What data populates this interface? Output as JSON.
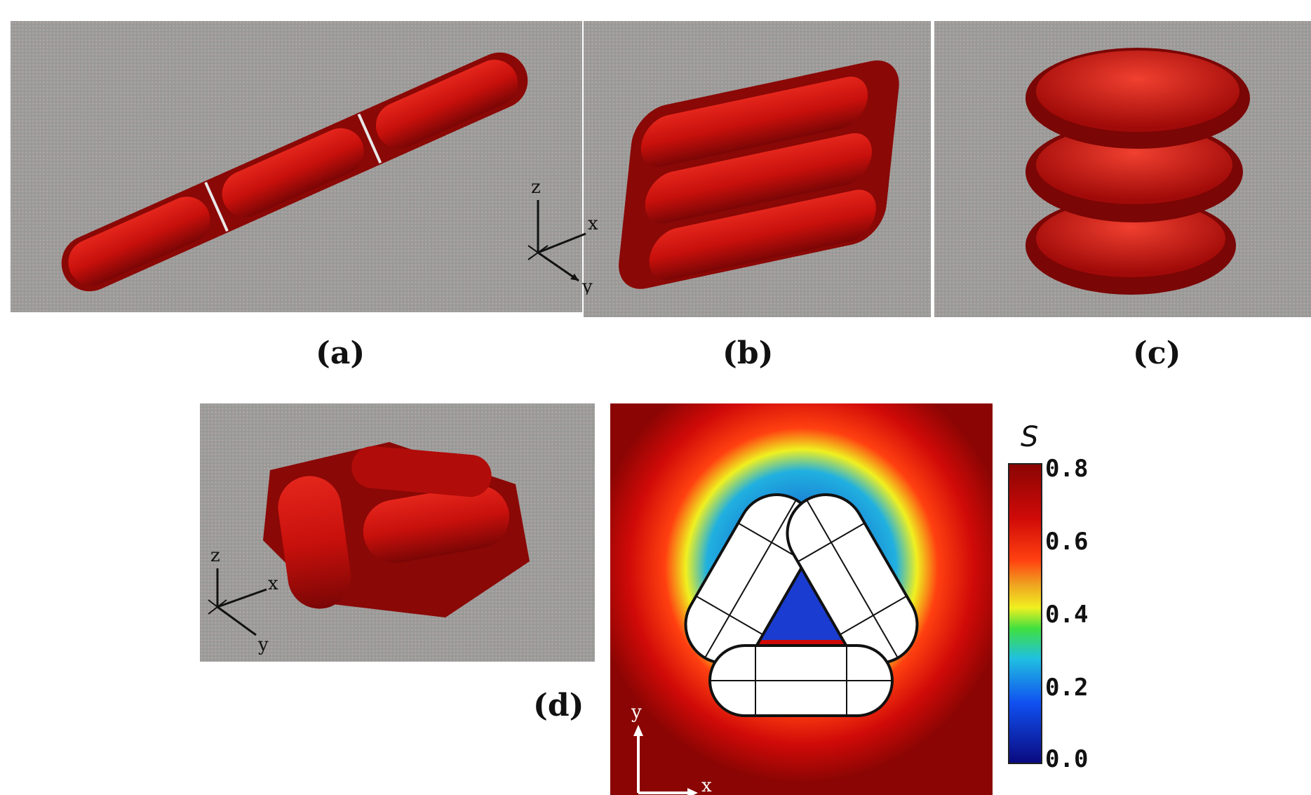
{
  "figure": {
    "panel_captions": {
      "a": "(a)",
      "b": "(b)",
      "c": "(c)",
      "d": "(d)"
    },
    "axes_3d": {
      "x": "x",
      "y": "y",
      "z": "z"
    },
    "axes_2d": {
      "x": "x",
      "y": "y"
    },
    "colorbar": {
      "title": "S",
      "ticks": [
        "0.8",
        "0.6",
        "0.4",
        "0.2",
        "0.0"
      ]
    },
    "colors": {
      "rod_red": "#c8100c",
      "rod_dark": "#6e0604",
      "background_gray": "#9c9a9a",
      "field_dark_red": "#8a0503"
    }
  }
}
